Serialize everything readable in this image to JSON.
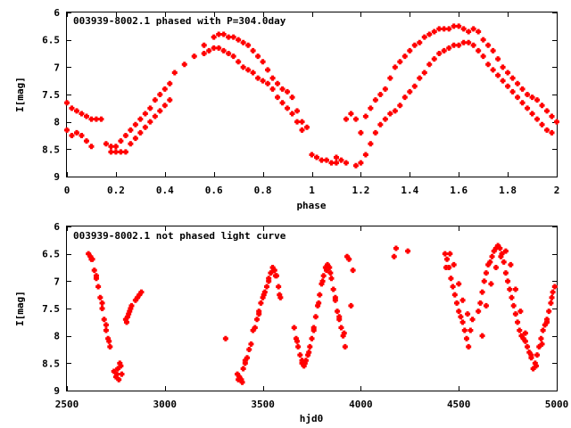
{
  "colors": {
    "points": "#ff0000",
    "axes": "#000000",
    "background": "#ffffff"
  },
  "chart_data": [
    {
      "type": "scatter",
      "title": "003939-8002.1 phased with P=304.0day",
      "xlabel": "phase",
      "ylabel": "I[mag]",
      "xlim": [
        0,
        2
      ],
      "ylim": [
        9,
        6
      ],
      "y_inverted": true,
      "grid": false,
      "xticks": [
        0,
        0.2,
        0.4,
        0.6,
        0.8,
        1,
        1.2,
        1.4,
        1.6,
        1.8,
        2
      ],
      "yticks": [
        6,
        6.5,
        7,
        7.5,
        8,
        8.5,
        9
      ],
      "xtick_labels": [
        "0",
        "0.2",
        "0.4",
        "0.6",
        "0.8",
        "1",
        "1.2",
        "1.4",
        "1.6",
        "1.8",
        "2"
      ],
      "ytick_labels": [
        "6",
        "6.5",
        "7",
        "7.5",
        "8",
        "8.5",
        "9"
      ],
      "series": [
        {
          "name": "",
          "x": [
            0.0,
            0.02,
            0.04,
            0.06,
            0.08,
            0.1,
            0.12,
            0.14,
            0.16,
            0.18,
            0.2,
            0.22,
            0.24,
            0.26,
            0.28,
            0.3,
            0.32,
            0.34,
            0.36,
            0.38,
            0.4,
            0.42,
            0.44,
            0.48,
            0.52,
            0.56,
            0.6,
            0.62,
            0.64,
            0.66,
            0.68,
            0.7,
            0.72,
            0.74,
            0.76,
            0.78,
            0.8,
            0.82,
            0.84,
            0.86,
            0.88,
            0.9,
            0.92,
            0.94,
            0.96,
            0.98,
            1.0,
            1.02,
            1.04,
            1.06,
            1.08,
            1.1,
            1.12,
            1.14,
            1.16,
            1.18,
            1.2,
            1.22,
            1.24,
            1.26,
            1.28,
            1.3,
            1.32,
            1.34,
            1.36,
            1.38,
            1.4,
            1.42,
            1.44,
            1.46,
            1.48,
            1.5,
            1.52,
            1.54,
            1.56,
            1.58,
            1.6,
            1.62,
            1.64,
            1.66,
            1.68,
            1.7,
            1.72,
            1.74,
            1.76,
            1.78,
            1.8,
            1.82,
            1.84,
            1.86,
            1.88,
            1.9,
            1.92,
            1.94,
            1.96,
            1.98,
            2.0
          ],
          "y": [
            7.65,
            7.75,
            7.8,
            7.85,
            7.9,
            7.95,
            7.95,
            7.95,
            8.4,
            8.45,
            8.45,
            8.35,
            8.25,
            8.15,
            8.05,
            7.95,
            7.85,
            7.75,
            7.6,
            7.5,
            7.4,
            7.3,
            7.1,
            6.95,
            6.8,
            6.6,
            6.45,
            6.4,
            6.4,
            6.45,
            6.45,
            6.5,
            6.55,
            6.6,
            6.7,
            6.8,
            6.9,
            7.05,
            7.2,
            7.3,
            7.4,
            7.45,
            7.55,
            7.8,
            8.0,
            8.1,
            8.6,
            8.65,
            8.7,
            8.7,
            8.75,
            8.75,
            8.7,
            7.95,
            7.85,
            7.95,
            8.2,
            7.9,
            7.75,
            7.6,
            7.5,
            7.4,
            7.2,
            7.0,
            6.9,
            6.8,
            6.7,
            6.6,
            6.55,
            6.45,
            6.4,
            6.35,
            6.3,
            6.3,
            6.3,
            6.25,
            6.25,
            6.3,
            6.35,
            6.3,
            6.35,
            6.5,
            6.6,
            6.7,
            6.85,
            7.0,
            7.1,
            7.2,
            7.3,
            7.4,
            7.5,
            7.55,
            7.6,
            7.7,
            7.8,
            7.9,
            8.0
          ]
        },
        {
          "name": "",
          "x": [
            0.0,
            0.02,
            0.04,
            0.06,
            0.08,
            0.1,
            0.18,
            0.2,
            0.22,
            0.24,
            0.26,
            0.28,
            0.3,
            0.32,
            0.34,
            0.36,
            0.38,
            0.4,
            0.42,
            0.56,
            0.58,
            0.6,
            0.62,
            0.64,
            0.66,
            0.68,
            0.7,
            0.72,
            0.74,
            0.76,
            0.78,
            0.8,
            0.82,
            0.84,
            0.86,
            0.88,
            0.9,
            0.92,
            0.94,
            0.96,
            1.1,
            1.14,
            1.18,
            1.2,
            1.22,
            1.24,
            1.26,
            1.28,
            1.3,
            1.32,
            1.34,
            1.36,
            1.38,
            1.4,
            1.42,
            1.44,
            1.46,
            1.48,
            1.5,
            1.52,
            1.54,
            1.56,
            1.58,
            1.6,
            1.62,
            1.64,
            1.66,
            1.68,
            1.7,
            1.72,
            1.74,
            1.76,
            1.78,
            1.8,
            1.82,
            1.84,
            1.86,
            1.88,
            1.9,
            1.92,
            1.94,
            1.96,
            1.98
          ],
          "y": [
            8.15,
            8.25,
            8.2,
            8.25,
            8.35,
            8.45,
            8.55,
            8.55,
            8.55,
            8.55,
            8.4,
            8.3,
            8.2,
            8.1,
            8.0,
            7.9,
            7.8,
            7.7,
            7.6,
            6.75,
            6.7,
            6.65,
            6.65,
            6.7,
            6.75,
            6.8,
            6.9,
            7.0,
            7.05,
            7.1,
            7.2,
            7.25,
            7.3,
            7.4,
            7.55,
            7.65,
            7.75,
            7.85,
            8.0,
            8.15,
            8.65,
            8.75,
            8.8,
            8.75,
            8.6,
            8.4,
            8.2,
            8.05,
            7.95,
            7.85,
            7.8,
            7.7,
            7.55,
            7.45,
            7.35,
            7.2,
            7.1,
            6.95,
            6.85,
            6.75,
            6.7,
            6.65,
            6.6,
            6.6,
            6.55,
            6.55,
            6.6,
            6.7,
            6.8,
            6.95,
            7.05,
            7.15,
            7.25,
            7.35,
            7.45,
            7.55,
            7.65,
            7.75,
            7.85,
            7.95,
            8.05,
            8.15,
            8.2
          ]
        }
      ]
    },
    {
      "type": "scatter",
      "title": "003939-8002.1 not phased light curve",
      "xlabel": "hjd0",
      "ylabel": "I[mag]",
      "xlim": [
        2500,
        5000
      ],
      "ylim": [
        9,
        6
      ],
      "y_inverted": true,
      "grid": false,
      "xticks": [
        2500,
        3000,
        3500,
        4000,
        4500,
        5000
      ],
      "yticks": [
        6,
        6.5,
        7,
        7.5,
        8,
        8.5,
        9
      ],
      "xtick_labels": [
        "2500",
        "3000",
        "3500",
        "4000",
        "4500",
        "5000"
      ],
      "ytick_labels": [
        "6",
        "6.5",
        "7",
        "7.5",
        "8",
        "8.5",
        "9"
      ],
      "series": [
        {
          "name": "",
          "x": [
            2610,
            2620,
            2630,
            2640,
            2650,
            2660,
            2670,
            2680,
            2690,
            2700,
            2710,
            2720,
            2740,
            2750,
            2760,
            2770,
            2780,
            2800,
            2810,
            2820,
            2830,
            2850,
            2860,
            2870,
            2880,
            3310,
            3370,
            3380,
            3390,
            3400,
            3410,
            3420,
            3430,
            3440,
            3460,
            3470,
            3480,
            3490,
            3500,
            3510,
            3520,
            3530,
            3540,
            3550,
            3560,
            3570,
            3580,
            3590,
            3660,
            3670,
            3680,
            3690,
            3700,
            3710,
            3720,
            3730,
            3740,
            3750,
            3760,
            3770,
            3780,
            3790,
            3800,
            3810,
            3820,
            3830,
            3840,
            3850,
            3860,
            3870,
            3880,
            3890,
            3900,
            3910,
            3920,
            3930,
            3940,
            3950,
            3960,
            4170,
            4180,
            4240,
            4430,
            4440,
            4450,
            4460,
            4470,
            4480,
            4490,
            4500,
            4510,
            4520,
            4530,
            4540,
            4550,
            4560,
            4570,
            4600,
            4610,
            4620,
            4630,
            4640,
            4650,
            4660,
            4670,
            4680,
            4690,
            4700,
            4710,
            4720,
            4730,
            4740,
            4750,
            4760,
            4770,
            4780,
            4790,
            4800,
            4810,
            4820,
            4830,
            4840,
            4850,
            4860,
            4870,
            4880,
            4890,
            4900,
            4910,
            4920,
            4930,
            4940,
            4950,
            4960,
            4970,
            4980,
            4990
          ],
          "y": [
            6.5,
            6.55,
            6.6,
            6.8,
            6.95,
            7.1,
            7.3,
            7.5,
            7.7,
            7.9,
            8.05,
            8.2,
            8.65,
            8.75,
            8.6,
            8.5,
            8.7,
            7.7,
            7.65,
            7.55,
            7.45,
            7.35,
            7.3,
            7.25,
            7.2,
            8.05,
            8.7,
            8.75,
            8.8,
            8.6,
            8.5,
            8.4,
            8.25,
            8.15,
            7.85,
            7.7,
            7.55,
            7.4,
            7.3,
            7.2,
            7.1,
            6.95,
            6.85,
            6.75,
            6.8,
            6.9,
            7.1,
            7.3,
            7.85,
            8.05,
            8.2,
            8.35,
            8.5,
            8.55,
            8.45,
            8.35,
            8.2,
            8.05,
            7.85,
            7.65,
            7.45,
            7.25,
            7.05,
            6.9,
            6.75,
            6.7,
            6.75,
            6.95,
            7.15,
            7.35,
            7.55,
            7.7,
            7.85,
            8.0,
            8.2,
            6.55,
            6.6,
            7.45,
            6.8,
            6.55,
            6.4,
            6.45,
            6.5,
            6.6,
            6.75,
            6.95,
            7.1,
            7.25,
            7.4,
            7.55,
            7.65,
            7.75,
            7.9,
            8.05,
            8.2,
            7.9,
            7.7,
            7.55,
            7.4,
            7.2,
            7.0,
            6.85,
            6.7,
            6.65,
            6.55,
            6.45,
            6.4,
            6.35,
            6.4,
            6.5,
            6.65,
            6.85,
            7.0,
            7.15,
            7.3,
            7.45,
            7.6,
            7.75,
            7.9,
            8.0,
            8.05,
            8.1,
            8.2,
            8.3,
            8.4,
            8.6,
            8.5,
            8.35,
            8.2,
            8.05,
            7.9,
            7.8,
            7.7,
            7.55,
            7.4,
            7.2,
            7.1
          ]
        },
        {
          "name": "",
          "x": [
            2625,
            2650,
            2680,
            2700,
            2715,
            2755,
            2765,
            2775,
            2805,
            2815,
            2825,
            3375,
            3395,
            3410,
            3450,
            3480,
            3505,
            3530,
            3555,
            3565,
            3585,
            3675,
            3700,
            3715,
            3735,
            3760,
            3785,
            3805,
            3825,
            3845,
            3870,
            3890,
            3915,
            4435,
            4455,
            4475,
            4500,
            4520,
            4545,
            4620,
            4640,
            4665,
            4690,
            4715,
            4740,
            4765,
            4790,
            4815,
            4840,
            4870,
            4895,
            4925,
            4950,
            4975
          ],
          "y": [
            6.6,
            6.9,
            7.4,
            7.8,
            8.1,
            8.7,
            8.8,
            8.55,
            7.75,
            7.6,
            7.5,
            8.8,
            8.85,
            8.45,
            7.9,
            7.6,
            7.25,
            7.0,
            6.8,
            6.9,
            7.25,
            8.1,
            8.45,
            8.5,
            8.3,
            7.9,
            7.4,
            7.0,
            6.8,
            6.85,
            7.3,
            7.65,
            7.95,
            6.75,
            6.5,
            6.7,
            7.05,
            7.35,
            7.6,
            8.0,
            7.45,
            7.05,
            6.75,
            6.55,
            6.45,
            6.7,
            7.15,
            7.55,
            7.95,
            8.35,
            8.55,
            8.15,
            7.75,
            7.3
          ]
        }
      ]
    }
  ]
}
